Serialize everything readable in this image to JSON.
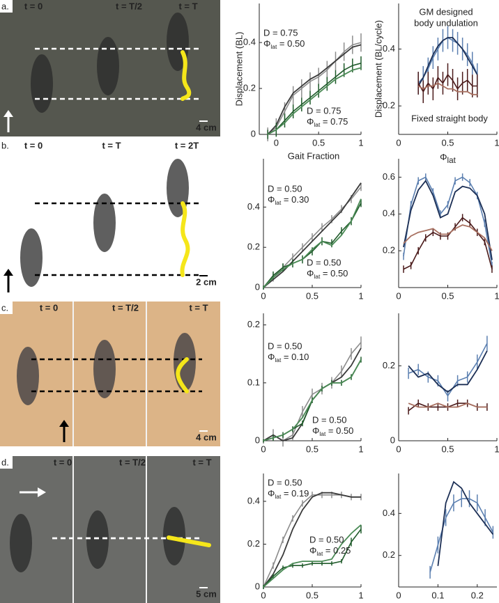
{
  "photos": [
    {
      "letter": "a.",
      "frames": [
        "t = 0",
        "t = T/2",
        "t = T"
      ],
      "scale": "4 cm"
    },
    {
      "letter": "b.",
      "frames": [
        "t = 0",
        "t = T",
        "t = 2T"
      ],
      "scale": "2 cm"
    },
    {
      "letter": "c.",
      "frames": [
        "t = 0",
        "t = T/2",
        "t = T"
      ],
      "scale": "4 cm"
    },
    {
      "letter": "d.",
      "frames": [
        "t = 0",
        "t = T/2",
        "t = T"
      ],
      "scale": "5 cm"
    }
  ],
  "chart_data": [
    {
      "type": "line",
      "ylabel": "Displacement (BL)",
      "xlabel": "Gait Fraction",
      "x": [
        -0.1,
        0,
        0.1,
        0.2,
        0.3,
        0.4,
        0.5,
        0.6,
        0.7,
        0.8,
        0.9,
        1
      ],
      "xlim": [
        -0.2,
        1
      ],
      "xticks": [
        0,
        0.5,
        1
      ],
      "ylim": [
        0,
        0.57
      ],
      "yticks": [
        0,
        0.2,
        0.4
      ],
      "annotations": [
        {
          "text": "D = 0.75",
          "symbol": "Φ",
          "subscript": "lat",
          "rest": " = 0.50",
          "color": "#222222"
        },
        {
          "text": "D = 0.75",
          "symbol": "Φ",
          "subscript": "lat",
          "rest": " = 0.75",
          "color": "#2e6b3a"
        }
      ],
      "series": [
        {
          "color": "#8c8c8c",
          "values": [
            0,
            0.03,
            0.1,
            0.17,
            0.2,
            0.23,
            0.25,
            0.28,
            0.32,
            0.36,
            0.39,
            0.4
          ],
          "errors": [
            0.03,
            0.04,
            0.04,
            0.04,
            0.04,
            0.04,
            0.04,
            0.04,
            0.04,
            0.04,
            0.04,
            0.04
          ]
        },
        {
          "color": "#3a3a3a",
          "values": [
            0,
            0.04,
            0.12,
            0.18,
            0.21,
            0.24,
            0.26,
            0.29,
            0.32,
            0.35,
            0.38,
            0.39
          ]
        },
        {
          "color": "#1f5a2a",
          "values": [
            0,
            0.02,
            0.06,
            0.1,
            0.13,
            0.16,
            0.19,
            0.22,
            0.25,
            0.28,
            0.3,
            0.31
          ],
          "errors": [
            0.02,
            0.03,
            0.03,
            0.03,
            0.03,
            0.03,
            0.03,
            0.03,
            0.03,
            0.03,
            0.03,
            0.03
          ]
        },
        {
          "color": "#4a8a55",
          "values": [
            0,
            0.02,
            0.05,
            0.09,
            0.12,
            0.15,
            0.18,
            0.21,
            0.24,
            0.26,
            0.28,
            0.29
          ]
        }
      ]
    },
    {
      "type": "line",
      "ylabel": "Displacement (BL/cycle)",
      "xlabel": {
        "symbol": "Φ",
        "subscript": "lat"
      },
      "x": [
        0.2,
        0.25,
        0.3,
        0.35,
        0.4,
        0.45,
        0.5,
        0.55,
        0.6,
        0.65,
        0.7,
        0.75,
        0.8
      ],
      "xlim": [
        0,
        1
      ],
      "xticks": [
        0,
        0.5,
        1
      ],
      "ylim": [
        0.1,
        0.56
      ],
      "yticks": [
        0.2,
        0.4
      ],
      "notes": [
        {
          "lines": [
            "GM designed",
            "body undulation"
          ],
          "color": "#2a4a80"
        },
        {
          "lines": [
            "Fixed straight body"
          ],
          "color": "#9a6a50"
        }
      ],
      "series": [
        {
          "color": "#5b7fb0",
          "values": [
            0.28,
            0.3,
            0.33,
            0.37,
            0.4,
            0.43,
            0.44,
            0.43,
            0.42,
            0.4,
            0.38,
            0.35,
            0.31
          ],
          "errors": [
            0.04,
            0.04,
            0.04,
            0.04,
            0.04,
            0.04,
            0.04,
            0.04,
            0.04,
            0.04,
            0.04,
            0.04,
            0.04
          ]
        },
        {
          "color": "#1c2f55",
          "values": [
            0.27,
            0.3,
            0.34,
            0.38,
            0.41,
            0.43,
            0.44,
            0.44,
            0.42,
            0.4,
            0.37,
            0.34,
            0.31
          ]
        },
        {
          "color": "#4a1a1a",
          "values": [
            0.28,
            0.25,
            0.28,
            0.26,
            0.3,
            0.28,
            0.31,
            0.29,
            0.26,
            0.28,
            0.29,
            0.27,
            0.27
          ],
          "errors": [
            0.04,
            0.04,
            0.04,
            0.04,
            0.04,
            0.04,
            0.04,
            0.04,
            0.04,
            0.04,
            0.04,
            0.04,
            0.04
          ]
        },
        {
          "color": "#a87060",
          "values": [
            0.27,
            0.26,
            0.27,
            0.27,
            0.28,
            0.27,
            0.26,
            0.26,
            0.25,
            0.25,
            0.25,
            0.24,
            0.24
          ]
        }
      ]
    },
    {
      "type": "line",
      "x": [
        0,
        0.1,
        0.2,
        0.3,
        0.4,
        0.5,
        0.6,
        0.7,
        0.8,
        0.9,
        1
      ],
      "xlim": [
        0,
        1
      ],
      "xticks": [
        0,
        0.5,
        1
      ],
      "ylim": [
        0,
        0.64
      ],
      "yticks": [
        0,
        0.2,
        0.4
      ],
      "annotations": [
        {
          "text": "D = 0.50",
          "symbol": "Φ",
          "subscript": "lat",
          "rest": " = 0.30",
          "color": "#222222"
        },
        {
          "text": "D = 0.50",
          "symbol": "Φ",
          "subscript": "lat",
          "rest": " = 0.50",
          "color": "#2e6b3a"
        }
      ],
      "series": [
        {
          "color": "#8c8c8c",
          "values": [
            0,
            0.05,
            0.1,
            0.15,
            0.2,
            0.25,
            0.3,
            0.34,
            0.39,
            0.44,
            0.5
          ],
          "errors": [
            0.01,
            0.02,
            0.02,
            0.02,
            0.02,
            0.02,
            0.02,
            0.02,
            0.02,
            0.02,
            0.02
          ]
        },
        {
          "color": "#3a3a3a",
          "values": [
            0,
            0.04,
            0.08,
            0.13,
            0.18,
            0.23,
            0.28,
            0.33,
            0.38,
            0.45,
            0.52
          ]
        },
        {
          "color": "#1f5a2a",
          "values": [
            0,
            0.06,
            0.1,
            0.12,
            0.14,
            0.18,
            0.23,
            0.22,
            0.28,
            0.33,
            0.42
          ],
          "errors": [
            0.01,
            0.02,
            0.02,
            0.02,
            0.02,
            0.02,
            0.02,
            0.02,
            0.02,
            0.02,
            0.02
          ]
        },
        {
          "color": "#4a8a55",
          "values": [
            0,
            0.05,
            0.09,
            0.12,
            0.14,
            0.19,
            0.23,
            0.21,
            0.26,
            0.33,
            0.44
          ]
        }
      ]
    },
    {
      "type": "line",
      "x": [
        0.05,
        0.125,
        0.2,
        0.275,
        0.35,
        0.425,
        0.5,
        0.575,
        0.65,
        0.725,
        0.8,
        0.875,
        0.95
      ],
      "xlim": [
        0,
        1
      ],
      "xticks": [
        0,
        0.5,
        1
      ],
      "ylim": [
        0,
        0.7
      ],
      "yticks": [
        0.2,
        0.4,
        0.6
      ],
      "series": [
        {
          "color": "#5b7fb0",
          "values": [
            0.17,
            0.45,
            0.58,
            0.6,
            0.52,
            0.4,
            0.45,
            0.58,
            0.6,
            0.57,
            0.5,
            0.35,
            0.12
          ],
          "errors": [
            0.02,
            0.02,
            0.02,
            0.02,
            0.02,
            0.02,
            0.02,
            0.02,
            0.02,
            0.02,
            0.02,
            0.02,
            0.02
          ]
        },
        {
          "color": "#1c2f55",
          "values": [
            0.22,
            0.42,
            0.53,
            0.58,
            0.5,
            0.38,
            0.4,
            0.52,
            0.55,
            0.54,
            0.5,
            0.4,
            0.15
          ]
        },
        {
          "color": "#4a1a1a",
          "values": [
            0.1,
            0.12,
            0.2,
            0.27,
            0.3,
            0.28,
            0.28,
            0.33,
            0.38,
            0.35,
            0.3,
            0.25,
            0.1
          ],
          "errors": [
            0.02,
            0.02,
            0.02,
            0.02,
            0.02,
            0.02,
            0.02,
            0.02,
            0.02,
            0.02,
            0.02,
            0.02,
            0.02
          ]
        },
        {
          "color": "#a87060",
          "values": [
            0.24,
            0.28,
            0.3,
            0.31,
            0.32,
            0.29,
            0.29,
            0.32,
            0.34,
            0.33,
            0.3,
            0.27,
            0.2
          ]
        }
      ]
    },
    {
      "type": "line",
      "x": [
        0,
        0.1,
        0.2,
        0.3,
        0.4,
        0.5,
        0.6,
        0.7,
        0.8,
        0.9,
        1
      ],
      "xlim": [
        0,
        1
      ],
      "xticks": [
        0,
        0.5,
        1
      ],
      "ylim": [
        0,
        0.22
      ],
      "yticks": [
        0,
        0.1,
        0.2
      ],
      "annotations": [
        {
          "text": "D = 0.50",
          "symbol": "Φ",
          "subscript": "lat",
          "rest": " = 0.10",
          "color": "#222222"
        },
        {
          "text": "D = 0.50",
          "symbol": "Φ",
          "subscript": "lat",
          "rest": " = 0.50",
          "color": "#2e6b3a"
        }
      ],
      "series": [
        {
          "color": "#8c8c8c",
          "values": [
            0,
            0.01,
            0,
            0.01,
            0.05,
            0.08,
            0.09,
            0.1,
            0.12,
            0.15,
            0.17
          ],
          "errors": [
            0.005,
            0.01,
            0.01,
            0.01,
            0.01,
            0.01,
            0.01,
            0.01,
            0.01,
            0.01,
            0.01
          ]
        },
        {
          "color": "#3a3a3a",
          "values": [
            0,
            0.01,
            0,
            0.005,
            0.03,
            0.07,
            0.09,
            0.1,
            0.11,
            0.13,
            0.16
          ]
        },
        {
          "color": "#1f5a2a",
          "values": [
            0,
            0.005,
            0.01,
            0.02,
            0.03,
            0.07,
            0.09,
            0.1,
            0.1,
            0.11,
            0.14
          ],
          "errors": [
            0.003,
            0.005,
            0.005,
            0.005,
            0.005,
            0.005,
            0.005,
            0.005,
            0.005,
            0.005,
            0.005
          ]
        },
        {
          "color": "#4a8a55",
          "values": [
            0,
            0.005,
            0.01,
            0.02,
            0.04,
            0.07,
            0.09,
            0.1,
            0.1,
            0.11,
            0.14
          ]
        }
      ]
    },
    {
      "type": "line",
      "x": [
        0.1,
        0.2,
        0.3,
        0.4,
        0.5,
        0.6,
        0.7,
        0.8,
        0.9
      ],
      "xlim": [
        0,
        1
      ],
      "xticks": [
        0,
        0.5,
        1
      ],
      "ylim": [
        0,
        0.34
      ],
      "yticks": [
        0,
        0.2
      ],
      "series": [
        {
          "color": "#5b7fb0",
          "values": [
            0.18,
            0.19,
            0.17,
            0.16,
            0.12,
            0.16,
            0.17,
            0.21,
            0.26
          ],
          "errors": [
            0.015,
            0.015,
            0.015,
            0.015,
            0.015,
            0.015,
            0.015,
            0.02,
            0.02
          ]
        },
        {
          "color": "#1c2f55",
          "values": [
            0.2,
            0.17,
            0.18,
            0.15,
            0.13,
            0.15,
            0.15,
            0.19,
            0.24
          ]
        },
        {
          "color": "#4a1a1a",
          "values": [
            0.08,
            0.1,
            0.09,
            0.09,
            0.09,
            0.1,
            0.1,
            0.09,
            0.09
          ],
          "errors": [
            0.01,
            0.01,
            0.01,
            0.01,
            0.01,
            0.01,
            0.01,
            0.01,
            0.01
          ]
        },
        {
          "color": "#a87060",
          "values": [
            0.1,
            0.09,
            0.09,
            0.1,
            0.09,
            0.09,
            0.1,
            0.09,
            0.09
          ]
        }
      ]
    },
    {
      "type": "line",
      "x": [
        0,
        0.1,
        0.2,
        0.3,
        0.4,
        0.5,
        0.6,
        0.7,
        0.8,
        0.9,
        1
      ],
      "xlim": [
        0,
        1
      ],
      "xticks": [
        0,
        0.5,
        1
      ],
      "ylim": [
        0,
        0.53
      ],
      "yticks": [
        0,
        0.2,
        0.4
      ],
      "annotations": [
        {
          "text": "D = 0.50",
          "symbol": "Φ",
          "subscript": "lat",
          "rest": " = 0.19",
          "color": "#222222"
        },
        {
          "text": "D = 0.50",
          "symbol": "Φ",
          "subscript": "lat",
          "rest": " = 0.25",
          "color": "#2e6b3a"
        }
      ],
      "series": [
        {
          "color": "#8c8c8c",
          "values": [
            0,
            0.1,
            0.22,
            0.32,
            0.39,
            0.43,
            0.43,
            0.43,
            0.43,
            0.42,
            0.42
          ],
          "errors": [
            0.01,
            0.015,
            0.015,
            0.015,
            0.015,
            0.015,
            0.015,
            0.015,
            0.015,
            0.015,
            0.015
          ]
        },
        {
          "color": "#3a3a3a",
          "values": [
            0,
            0.06,
            0.15,
            0.27,
            0.36,
            0.42,
            0.44,
            0.44,
            0.43,
            0.42,
            0.42
          ]
        },
        {
          "color": "#1f5a2a",
          "values": [
            0,
            0.05,
            0.09,
            0.1,
            0.1,
            0.11,
            0.11,
            0.11,
            0.12,
            0.21,
            0.27
          ],
          "errors": [
            0.01,
            0.01,
            0.01,
            0.01,
            0.01,
            0.01,
            0.01,
            0.01,
            0.01,
            0.02,
            0.02
          ]
        },
        {
          "color": "#4a8a55",
          "values": [
            0,
            0.04,
            0.08,
            0.11,
            0.12,
            0.12,
            0.12,
            0.13,
            0.2,
            0.25,
            0.29
          ]
        }
      ]
    },
    {
      "type": "line",
      "x": [
        0.08,
        0.1,
        0.12,
        0.14,
        0.16,
        0.18,
        0.2,
        0.22,
        0.24
      ],
      "xlim": [
        0,
        0.25
      ],
      "xticks": [
        0,
        0.1,
        0.2
      ],
      "ylim": [
        0.05,
        0.59
      ],
      "yticks": [
        0.2,
        0.4
      ],
      "series": [
        {
          "color": "#5b7fb0",
          "values": [
            0.12,
            0.25,
            0.38,
            0.45,
            0.47,
            0.47,
            0.45,
            0.38,
            0.31
          ],
          "errors": [
            0.03,
            0.04,
            0.04,
            0.04,
            0.04,
            0.04,
            0.04,
            0.04,
            0.03
          ]
        },
        {
          "color": "#1c2f55",
          "values": [
            null,
            0.15,
            0.45,
            0.55,
            0.52,
            0.45,
            0.4,
            0.35,
            0.3
          ]
        }
      ]
    }
  ]
}
